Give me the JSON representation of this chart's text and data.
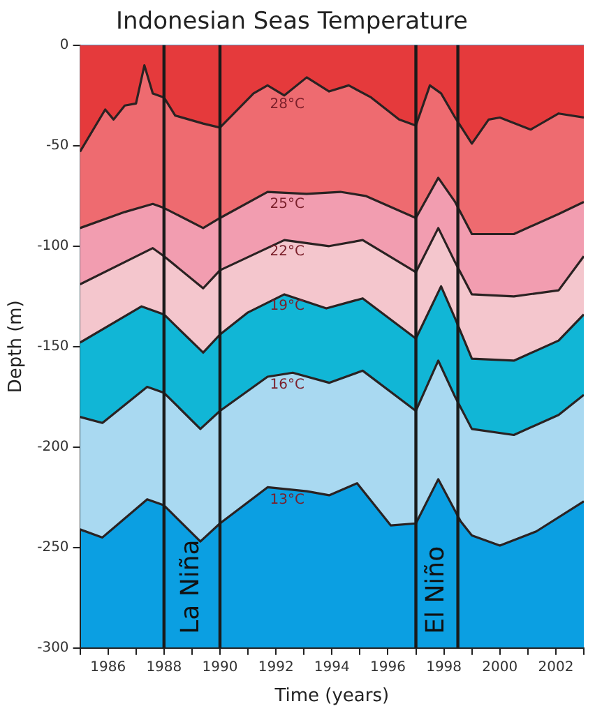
{
  "chart_data": {
    "type": "area",
    "title": "Indonesian Seas Temperature",
    "xlabel": "Time (years)",
    "ylabel": "Depth (m)",
    "xlim": [
      1985,
      2003
    ],
    "xticks": [
      {
        "value": 1985,
        "label": null
      },
      1986,
      {
        "value": 1987,
        "label": null
      },
      1988,
      {
        "value": 1989,
        "label": null
      },
      1990,
      {
        "value": 1991,
        "label": null
      },
      1992,
      {
        "value": 1993,
        "label": null
      },
      1994,
      {
        "value": 1995,
        "label": null
      },
      1996,
      {
        "value": 1997,
        "label": null
      },
      1998,
      {
        "value": 1999,
        "label": null
      },
      2000,
      {
        "value": 2001,
        "label": null
      },
      2002,
      {
        "value": 2003,
        "label": null
      }
    ],
    "ylim": [
      -300,
      0
    ],
    "yticks": [
      -300,
      -250,
      -200,
      -150,
      -100,
      -50,
      0
    ],
    "legend": false,
    "grid": false,
    "series": [
      {
        "name": "28°C",
        "color": "#e53a3c",
        "x": [
          1985,
          1985.9,
          1986.2,
          1986.6,
          1987,
          1987.3,
          1987.6,
          1988,
          1988.4,
          1989.4,
          1990,
          1991.2,
          1991.7,
          1992.3,
          1993.1,
          1993.9,
          1994.6,
          1995.4,
          1996.4,
          1997,
          1997.5,
          1997.9,
          1998.4,
          1999,
          1999.6,
          2000,
          2001.1,
          2002.1,
          2003
        ],
        "values": [
          -53,
          -32,
          -37,
          -30,
          -29,
          -10,
          -24,
          -26,
          -35,
          -39,
          -41,
          -24,
          -20,
          -25,
          -16,
          -23,
          -20,
          -26,
          -37,
          -40,
          -20,
          -24,
          -36,
          -49,
          -37,
          -36,
          -42,
          -34,
          -36
        ]
      },
      {
        "name": "25°C",
        "color": "#ee6b70",
        "x": [
          1985,
          1986.6,
          1987.6,
          1988,
          1989.4,
          1990,
          1991.7,
          1993.1,
          1994.3,
          1995.2,
          1997,
          1997.8,
          1998.4,
          1999,
          2000.5,
          2002.1,
          2003
        ],
        "values": [
          -91,
          -83,
          -79,
          -81,
          -91,
          -86,
          -73,
          -74,
          -73,
          -75,
          -86,
          -66,
          -78,
          -94,
          -94,
          -84,
          -78
        ]
      },
      {
        "name": "22°C",
        "color": "#f29db0",
        "x": [
          1985,
          1987.6,
          1988,
          1989.4,
          1990,
          1992.3,
          1993.9,
          1995.1,
          1997,
          1997.8,
          1998.4,
          1999,
          2000.5,
          2002.1,
          2003
        ],
        "values": [
          -119,
          -101,
          -105,
          -121,
          -112,
          -97,
          -100,
          -97,
          -113,
          -91,
          -108,
          -124,
          -125,
          -122,
          -105
        ]
      },
      {
        "name": "19°C",
        "color": "#f4c6cd",
        "x": [
          1985,
          1987.2,
          1988,
          1989.4,
          1990,
          1991,
          1992.3,
          1993.8,
          1995.1,
          1997,
          1997.9,
          1998.4,
          1999,
          2000.5,
          2002.1,
          2003
        ],
        "values": [
          -148,
          -130,
          -134,
          -153,
          -144,
          -133,
          -124,
          -131,
          -126,
          -146,
          -120,
          -136,
          -156,
          -157,
          -147,
          -134
        ]
      },
      {
        "name": "16°C",
        "color": "#11b6d6",
        "x": [
          1985,
          1985.8,
          1987.4,
          1988,
          1989.3,
          1990,
          1991.7,
          1992.6,
          1993.9,
          1995.1,
          1997,
          1997.8,
          1998.4,
          1999,
          2000.5,
          2002.1,
          2003
        ],
        "values": [
          -185,
          -188,
          -170,
          -173,
          -191,
          -182,
          -165,
          -163,
          -168,
          -162,
          -182,
          -157,
          -175,
          -191,
          -194,
          -184,
          -174
        ]
      },
      {
        "name": "13°C",
        "color": "#a9d9f1",
        "x": [
          1985,
          1985.8,
          1987.4,
          1988,
          1989.3,
          1990,
          1991.7,
          1993.1,
          1993.9,
          1994.9,
          1996.1,
          1997,
          1997.8,
          1998.6,
          1999,
          2000,
          2001.3,
          2003
        ],
        "values": [
          -241,
          -245,
          -226,
          -229,
          -247,
          -238,
          -220,
          -222,
          -224,
          -218,
          -239,
          -238,
          -216,
          -237,
          -244,
          -249,
          -242,
          -227
        ]
      }
    ],
    "ref_lines": [
      {
        "axis": "x",
        "value": 1988
      },
      {
        "axis": "x",
        "value": 1990
      },
      {
        "axis": "x",
        "value": 1997
      },
      {
        "axis": "x",
        "value": 1998.5
      }
    ],
    "annotations": [
      "La Niña",
      "El Niño"
    ]
  }
}
